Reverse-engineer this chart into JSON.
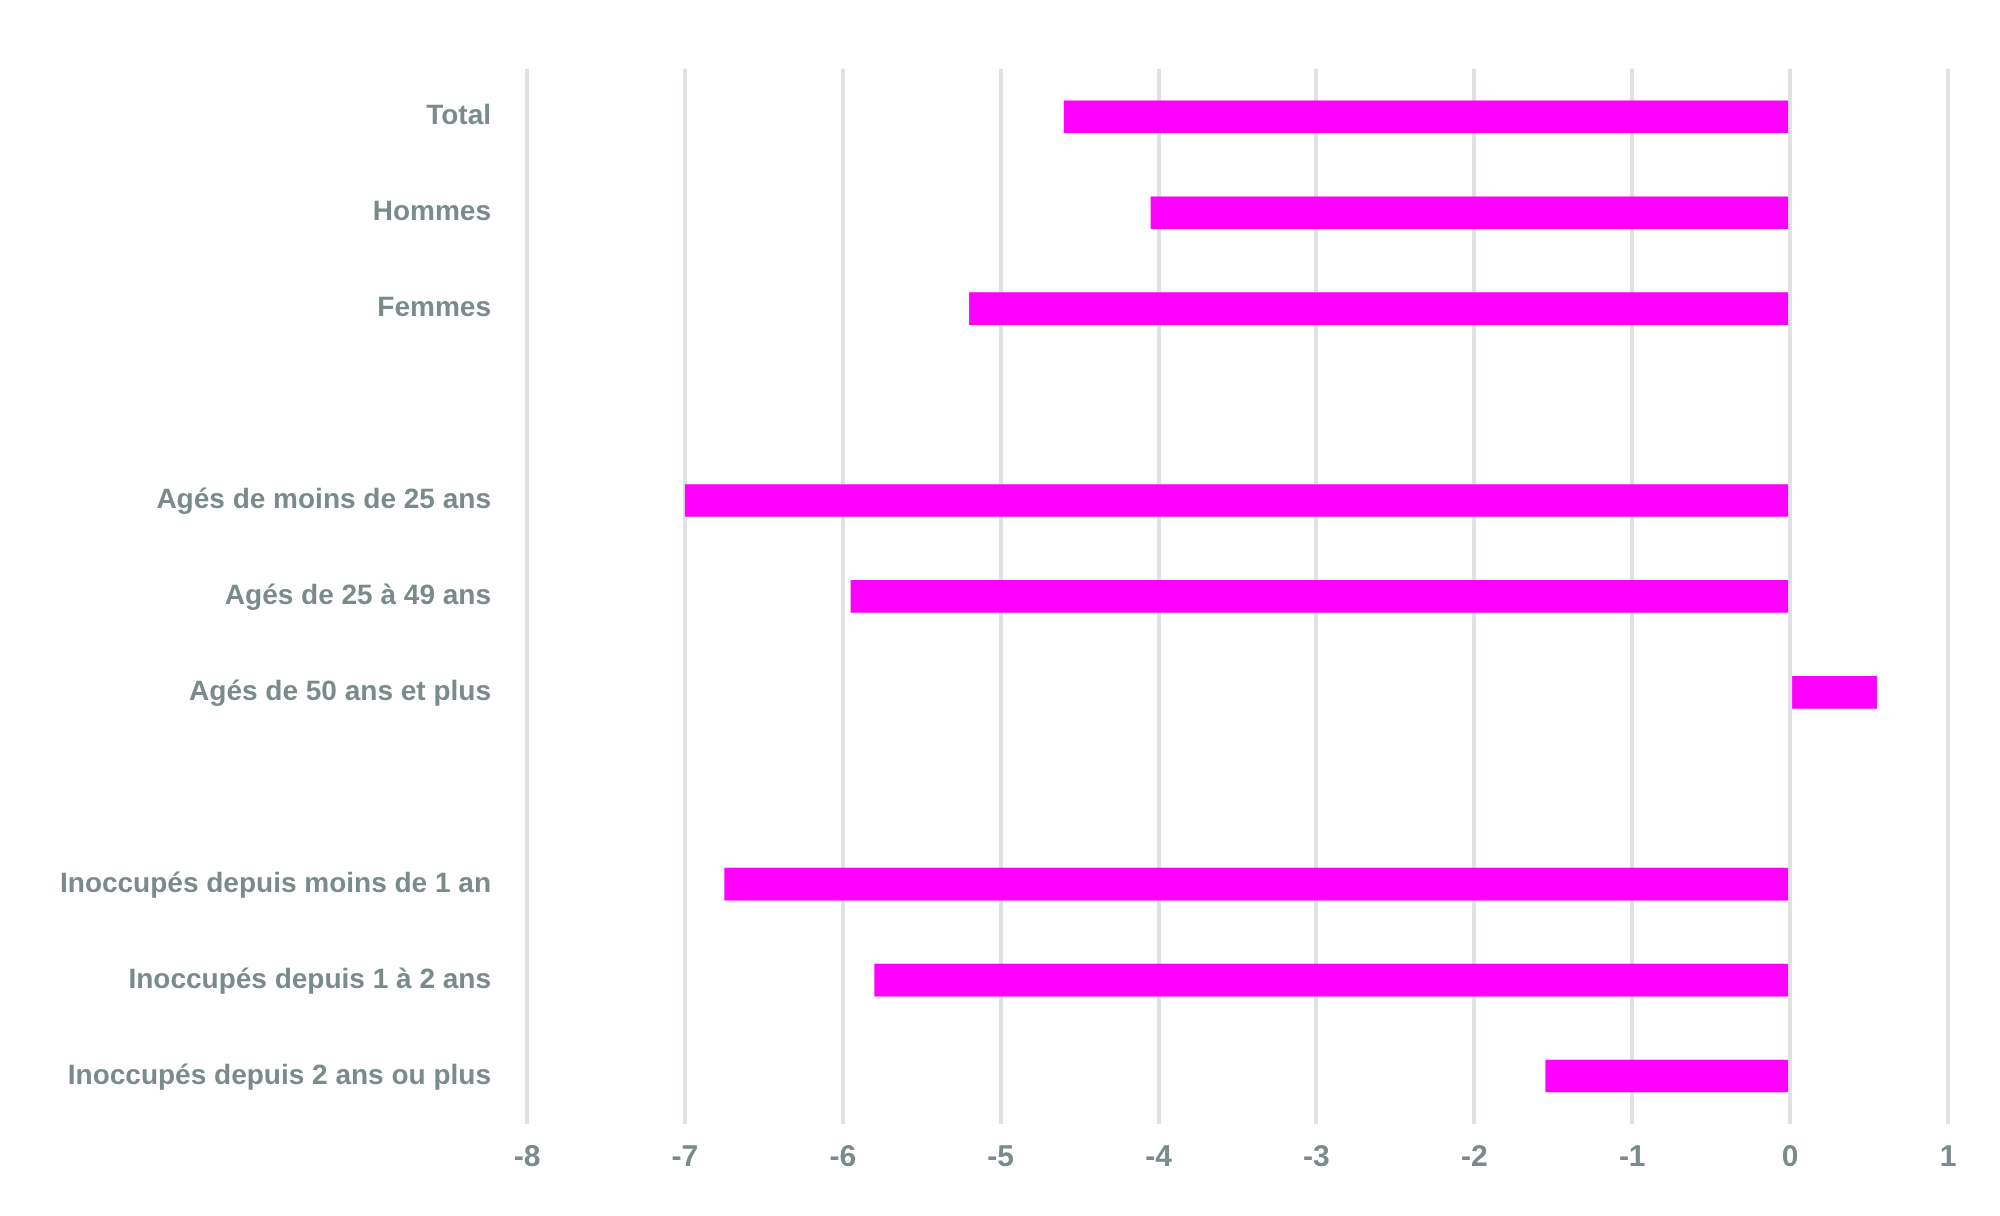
{
  "chart_data": {
    "type": "bar",
    "orientation": "horizontal",
    "categories": [
      "Total",
      "Hommes",
      "Femmes",
      null,
      "Agés de moins de 25 ans",
      "Agés de 25 à 49 ans",
      "Agés de 50 ans et plus",
      null,
      "Inoccupés depuis moins de 1 an",
      "Inoccupés depuis 1 à 2 ans",
      "Inoccupés depuis 2 ans ou plus"
    ],
    "values": [
      -4.6,
      -4.05,
      -5.2,
      null,
      -7.0,
      -5.95,
      0.55,
      null,
      -6.75,
      -5.8,
      -1.55
    ],
    "color": "#ff00ff",
    "xlim": [
      -8,
      1
    ],
    "xticks": [
      -8,
      -7,
      -6,
      -5,
      -4,
      -3,
      -2,
      -1,
      0,
      1
    ],
    "grid": "x",
    "legend": false
  }
}
